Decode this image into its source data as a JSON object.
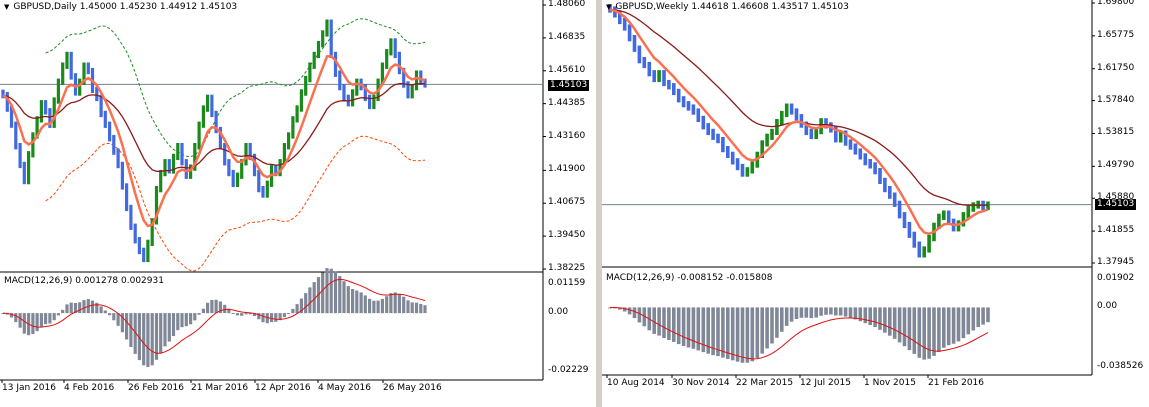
{
  "colors": {
    "bull_bar": "#1a8a1a",
    "bear_bar": "#4169e1",
    "ma_fast": "#fa7050",
    "ma_slow": "#8b1a1a",
    "envelope_upper": "#228b22",
    "envelope_lower": "#ff4500",
    "macd_hist": "#808898",
    "macd_signal": "#e01010",
    "current_price_line": "#708090"
  },
  "left_chart": {
    "title": "GBPUSD,Daily  1.45000 1.45230 1.44912 1.45103",
    "price_ticks": [
      "1.48060",
      "1.46835",
      "1.45610",
      "1.44385",
      "1.43160",
      "1.41900",
      "1.40675",
      "1.39450",
      "1.38225"
    ],
    "current_price": "1.45103",
    "macd_label": "MACD(12,26,9) 0.001278 0.002931",
    "macd_ticks": [
      "0.01159",
      "0.00",
      "-0.02229"
    ],
    "date_ticks": [
      "13 Jan 2016",
      "4 Feb 2016",
      "26 Feb 2016",
      "21 Mar 2016",
      "12 Apr 2016",
      "4 May 2016",
      "26 May 2016"
    ],
    "chart_data": {
      "type": "bar",
      "symbol": "GBPUSD",
      "timeframe": "Daily",
      "ohlc_last": {
        "open": 1.45,
        "high": 1.4523,
        "low": 1.44912,
        "close": 1.45103
      },
      "ylim": [
        1.38225,
        1.4806
      ],
      "closes": [
        1.447,
        1.442,
        1.436,
        1.428,
        1.421,
        1.415,
        1.425,
        1.432,
        1.438,
        1.444,
        1.441,
        1.436,
        1.445,
        1.452,
        1.458,
        1.462,
        1.454,
        1.448,
        1.452,
        1.458,
        1.456,
        1.449,
        1.446,
        1.44,
        1.436,
        1.431,
        1.426,
        1.421,
        1.413,
        1.405,
        1.398,
        1.393,
        1.389,
        1.386,
        1.392,
        1.4,
        1.412,
        1.418,
        1.422,
        1.419,
        1.424,
        1.428,
        1.422,
        1.417,
        1.42,
        1.428,
        1.436,
        1.442,
        1.446,
        1.44,
        1.434,
        1.428,
        1.422,
        1.418,
        1.414,
        1.417,
        1.422,
        1.428,
        1.424,
        1.418,
        1.412,
        1.41,
        1.414,
        1.42,
        1.418,
        1.422,
        1.428,
        1.432,
        1.438,
        1.442,
        1.448,
        1.453,
        1.458,
        1.462,
        1.466,
        1.47,
        1.474,
        1.462,
        1.455,
        1.45,
        1.446,
        1.444,
        1.448,
        1.452,
        1.45,
        1.446,
        1.443,
        1.446,
        1.452,
        1.458,
        1.463,
        1.467,
        1.462,
        1.456,
        1.451,
        1.447,
        1.45,
        1.455,
        1.452,
        1.451
      ],
      "macd_main": 0.001278,
      "macd_signal": 0.002931,
      "macd_ylim": [
        -0.02229,
        0.01159
      ]
    }
  },
  "right_chart": {
    "title": "GBPUSD,Weekly  1.44618 1.46608 1.43517 1.45103",
    "price_ticks": [
      "1.69800",
      "1.65775",
      "1.61750",
      "1.57840",
      "1.53815",
      "1.49790",
      "1.45880",
      "1.41855",
      "1.37945"
    ],
    "current_price": "1.45103",
    "macd_label": "MACD(12,26,9) -0.008152 -0.015808",
    "macd_ticks": [
      "0.01902",
      "0.00",
      "-0.038526"
    ],
    "date_ticks": [
      "10 Aug 2014",
      "30 Nov 2014",
      "22 Mar 2015",
      "12 Jul 2015",
      "1 Nov 2015",
      "21 Feb 2016"
    ],
    "chart_data": {
      "type": "bar",
      "symbol": "GBPUSD",
      "timeframe": "Weekly",
      "ohlc_last": {
        "open": 1.44618,
        "high": 1.46608,
        "low": 1.43517,
        "close": 1.45103
      },
      "ylim": [
        1.37945,
        1.698
      ],
      "closes": [
        1.69,
        1.684,
        1.676,
        1.668,
        1.655,
        1.642,
        1.628,
        1.622,
        1.612,
        1.605,
        1.612,
        1.6,
        1.596,
        1.589,
        1.58,
        1.574,
        1.57,
        1.565,
        1.556,
        1.547,
        1.54,
        1.534,
        1.53,
        1.519,
        1.512,
        1.504,
        1.497,
        1.489,
        1.493,
        1.5,
        1.512,
        1.526,
        1.534,
        1.54,
        1.552,
        1.562,
        1.571,
        1.565,
        1.558,
        1.549,
        1.54,
        1.535,
        1.541,
        1.553,
        1.548,
        1.543,
        1.531,
        1.538,
        1.527,
        1.522,
        1.516,
        1.51,
        1.503,
        1.499,
        1.492,
        1.48,
        1.47,
        1.462,
        1.452,
        1.438,
        1.426,
        1.414,
        1.402,
        1.39,
        1.396,
        1.41,
        1.425,
        1.436,
        1.44,
        1.43,
        1.422,
        1.428,
        1.438,
        1.446,
        1.45,
        1.452,
        1.448,
        1.451
      ],
      "macd_main": -0.008152,
      "macd_signal": -0.015808,
      "macd_ylim": [
        -0.038526,
        0.01902
      ]
    }
  }
}
